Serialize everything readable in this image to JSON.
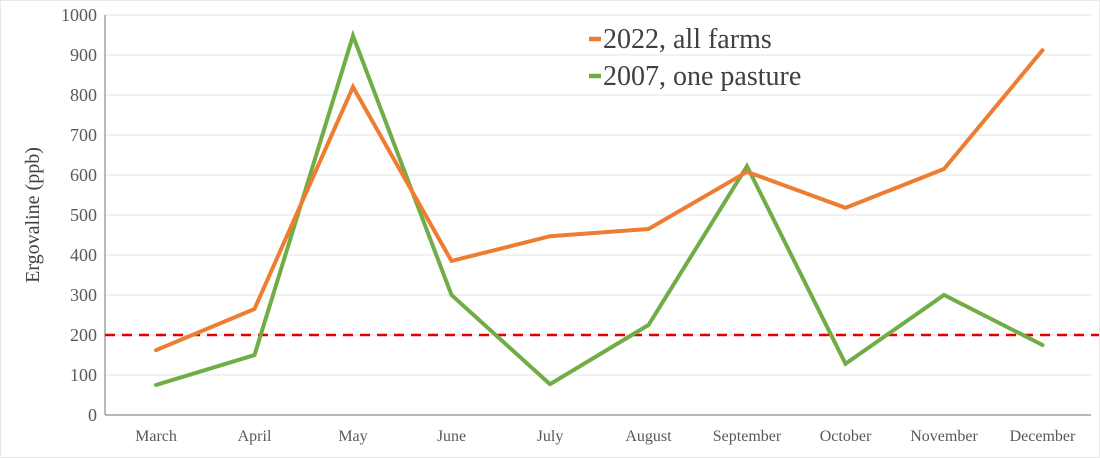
{
  "chart_data": {
    "type": "line",
    "title": "",
    "xlabel": "",
    "ylabel": "Ergovaline (ppb)",
    "categories": [
      "March",
      "April",
      "May",
      "June",
      "July",
      "August",
      "September",
      "October",
      "November",
      "December"
    ],
    "ylim": [
      0,
      1000
    ],
    "yticks": [
      0,
      100,
      200,
      300,
      400,
      500,
      600,
      700,
      800,
      900,
      1000
    ],
    "grid": true,
    "legend_position": "top-center",
    "series": [
      {
        "name": "2022, all farms",
        "color": "#ED7D31",
        "values": [
          162,
          265,
          820,
          385,
          447,
          465,
          608,
          518,
          615,
          912
        ]
      },
      {
        "name": "2007, one pasture",
        "color": "#70AD47",
        "values": [
          75,
          150,
          948,
          300,
          77,
          225,
          622,
          128,
          300,
          175
        ]
      }
    ],
    "reference_line": {
      "value": 200,
      "color": "#E00000",
      "style": "dashed"
    }
  }
}
